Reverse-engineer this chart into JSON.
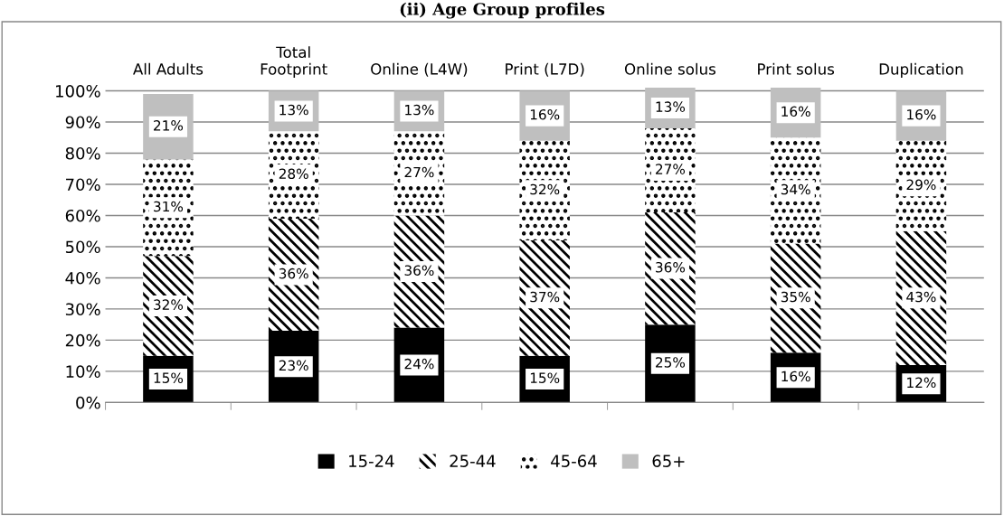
{
  "chart_data": {
    "type": "bar",
    "title": "(ii) Age Group profiles",
    "stacked": true,
    "categories": [
      "All Adults",
      "Total\nFootprint",
      "Online (L4W)",
      "Print (L7D)",
      "Online solus",
      "Print solus",
      "Duplication"
    ],
    "series": [
      {
        "name": "15-24",
        "color": "#000000",
        "values": [
          15,
          23,
          24,
          15,
          25,
          16,
          12
        ],
        "value_labels": [
          "15%",
          "23%",
          "24%",
          "15%",
          "25%",
          "16%",
          "12%"
        ]
      },
      {
        "name": "25-44",
        "color": "#000000",
        "values": [
          32,
          36,
          36,
          37,
          36,
          35,
          43
        ],
        "value_labels": [
          "32%",
          "36%",
          "36%",
          "37%",
          "36%",
          "35%",
          "43%"
        ]
      },
      {
        "name": "45-64",
        "color": "#000000",
        "values": [
          31,
          28,
          27,
          32,
          27,
          34,
          29
        ],
        "value_labels": [
          "31%",
          "28%",
          "27%",
          "32%",
          "27%",
          "34%",
          "29%"
        ]
      },
      {
        "name": "65+",
        "color": "#bfbfbf",
        "values": [
          21,
          13,
          13,
          16,
          13,
          16,
          16
        ],
        "value_labels": [
          "21%",
          "13%",
          "13%",
          "16%",
          "13%",
          "16%",
          "16%"
        ]
      }
    ],
    "ylim": [
      0,
      101
    ],
    "yticks": [
      {
        "value": 0,
        "label": "0%"
      },
      {
        "value": 10,
        "label": "10%"
      },
      {
        "value": 20,
        "label": "20%"
      },
      {
        "value": 30,
        "label": "30%"
      },
      {
        "value": 40,
        "label": "40%"
      },
      {
        "value": 50,
        "label": "50%"
      },
      {
        "value": 60,
        "label": "60%"
      },
      {
        "value": 70,
        "label": "70%"
      },
      {
        "value": 80,
        "label": "80%"
      },
      {
        "value": 90,
        "label": "90%"
      },
      {
        "value": 100,
        "label": "100%"
      }
    ],
    "grid": "y",
    "legend": "bottom"
  }
}
